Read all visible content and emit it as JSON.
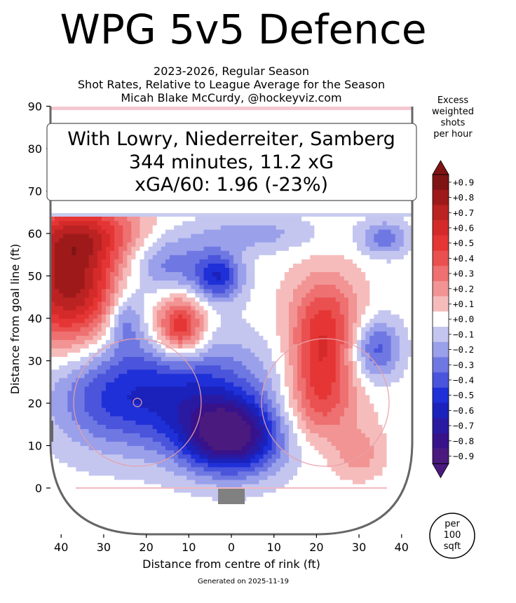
{
  "title": "WPG 5v5 Defence",
  "subtitle_lines": [
    "2023-2026, Regular Season",
    "Shot Rates, Relative to League Average for the Season",
    "Micah Blake McCurdy, @hockeyviz.com"
  ],
  "info_box": {
    "line1": "With Lowry, Niederreiter, Samberg",
    "line2": "344 minutes, 11.2 xG",
    "line3": "xGA/60: 1.96 (-23%)"
  },
  "footer": "Generated on 2025-11-19",
  "area_badge": [
    "per",
    "100",
    "sqft"
  ],
  "colorbar": {
    "title_lines": [
      "Excess",
      "weighted",
      "shots",
      "per hour"
    ],
    "levels": [
      "+0.9",
      "+0.8",
      "+0.7",
      "+0.6",
      "+0.5",
      "+0.4",
      "+0.3",
      "+0.2",
      "+0.1",
      "+0.0",
      "−0.1",
      "−0.2",
      "−0.3",
      "−0.4",
      "−0.5",
      "−0.6",
      "−0.7",
      "−0.8",
      "−0.9"
    ],
    "colors": [
      "#7f1414",
      "#9e1a1a",
      "#bb2222",
      "#d42a2a",
      "#e53535",
      "#ea5050",
      "#ee7070",
      "#f29494",
      "#f6bcbc",
      "#ffffff",
      "#c4c6f0",
      "#9aa0ea",
      "#6f78e2",
      "#4a55dc",
      "#1f30d8",
      "#1a22bb",
      "#2a1aa2",
      "#38128a",
      "#4a1a7e"
    ]
  },
  "chart_data": {
    "type": "heatmap",
    "title": "WPG 5v5 Defence",
    "xlabel": "Distance from centre of rink (ft)",
    "ylabel": "Distance from goal line (ft)",
    "xlim": [
      -42.5,
      42.5
    ],
    "ylim": [
      -11,
      90
    ],
    "x_ticks": [
      40,
      30,
      20,
      10,
      0,
      10,
      20,
      30,
      40
    ],
    "y_ticks": [
      0,
      10,
      20,
      30,
      40,
      50,
      60,
      70,
      80,
      90
    ],
    "value_range": [
      -0.9,
      0.9
    ],
    "hotspots": [
      {
        "x": -38,
        "y": 48,
        "value": 0.8,
        "sx": 8,
        "sy": 10
      },
      {
        "x": -34,
        "y": 60,
        "value": 0.4,
        "sx": 10,
        "sy": 5
      },
      {
        "x": -12,
        "y": 38,
        "value": 0.6,
        "sx": 4,
        "sy": 5
      },
      {
        "x": 22,
        "y": 40,
        "value": 0.4,
        "sx": 6,
        "sy": 8
      },
      {
        "x": 21,
        "y": 27,
        "value": 0.4,
        "sx": 5,
        "sy": 8
      },
      {
        "x": 20,
        "y": 18,
        "value": 0.2,
        "sx": 8,
        "sy": 6
      },
      {
        "x": 30,
        "y": 8,
        "value": 0.2,
        "sx": 4,
        "sy": 4
      },
      {
        "x": 0,
        "y": 12,
        "value": -0.85,
        "sx": 8,
        "sy": 6
      },
      {
        "x": -10,
        "y": 22,
        "value": -0.5,
        "sx": 14,
        "sy": 9
      },
      {
        "x": -30,
        "y": 22,
        "value": -0.3,
        "sx": 10,
        "sy": 9
      },
      {
        "x": -3,
        "y": 50,
        "value": -0.5,
        "sx": 4,
        "sy": 4
      },
      {
        "x": -15,
        "y": 53,
        "value": -0.3,
        "sx": 7,
        "sy": 5
      },
      {
        "x": -25,
        "y": 40,
        "value": -0.3,
        "sx": 3,
        "sy": 5
      },
      {
        "x": 5,
        "y": 60,
        "value": -0.2,
        "sx": 10,
        "sy": 3
      },
      {
        "x": 34,
        "y": 33,
        "value": -0.4,
        "sx": 4,
        "sy": 5
      },
      {
        "x": 36,
        "y": 59,
        "value": -0.3,
        "sx": 4,
        "sy": 3
      }
    ]
  }
}
